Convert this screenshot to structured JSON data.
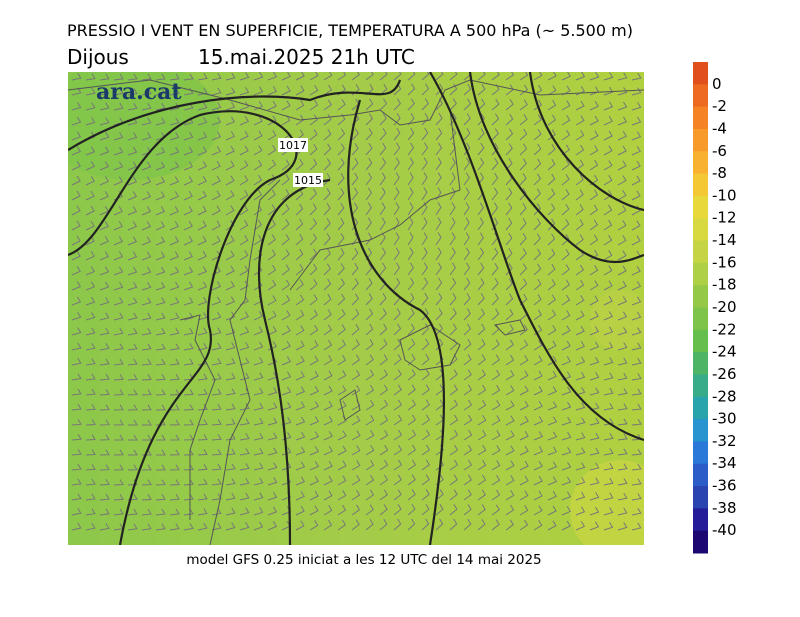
{
  "header": {
    "title": "PRESSIO I VENT EN SUPERFICIE, TEMPERATURA A 500 hPa (~ 5.500 m)",
    "day": "Dijous",
    "datetime": "15.mai.2025 21h UTC"
  },
  "map": {
    "logo": "ara.cat",
    "isobar_labels": [
      "1017",
      "1015"
    ]
  },
  "colorbar": {
    "colors": [
      "#e0501c",
      "#ee6a20",
      "#f58225",
      "#f89a2a",
      "#f8b230",
      "#f4c835",
      "#e8d83a",
      "#d8d840",
      "#c4d444",
      "#aed046",
      "#96c848",
      "#7ec44a",
      "#66be4c",
      "#4cb464",
      "#38ac88",
      "#2aa4ac",
      "#2894d0",
      "#2a78d8",
      "#2c5cc8",
      "#2a44b0",
      "#241c98",
      "#1c0870"
    ],
    "ticks": [
      0,
      -2,
      -4,
      -6,
      -8,
      -10,
      -12,
      -14,
      -16,
      -18,
      -20,
      -22,
      -24,
      -26,
      -28,
      -30,
      -32,
      -34,
      -36,
      -38,
      -40
    ]
  },
  "footer": "model GFS 0.25 iniciat a les 12 UTC del 14 mai 2025"
}
